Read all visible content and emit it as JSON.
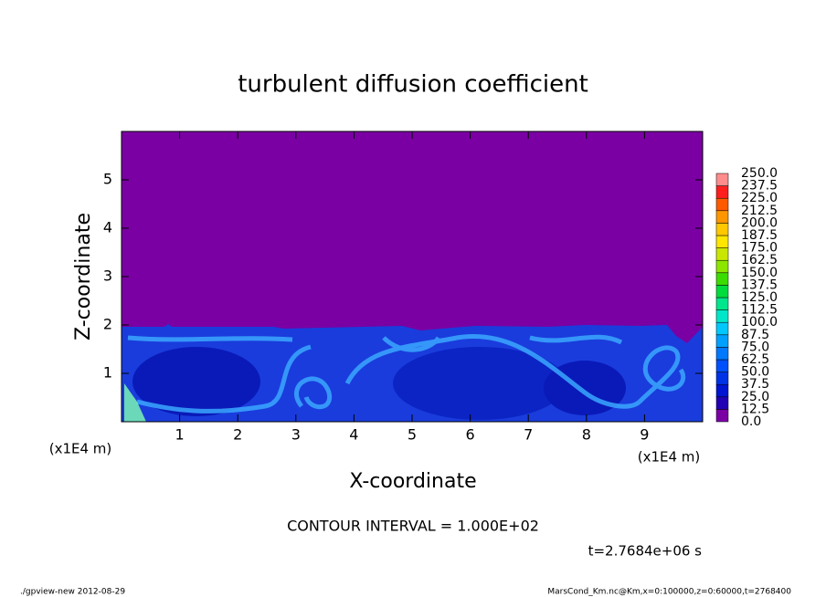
{
  "chart_data": {
    "type": "contour",
    "title": "turbulent diffusion coefficient",
    "xlabel": "X-coordinate",
    "ylabel": "Z-coordinate",
    "xunit": "(x1E4 m)",
    "yunit": "(x1E4 m)",
    "xlim": [
      0,
      10
    ],
    "ylim": [
      0,
      6
    ],
    "xticks": [
      1,
      2,
      3,
      4,
      5,
      6,
      7,
      8,
      9
    ],
    "yticks": [
      1,
      2,
      3,
      4,
      5
    ],
    "levels": [
      {
        "value": 0,
        "label": "0.0"
      },
      {
        "value": 12.5,
        "label": "12.5"
      },
      {
        "value": 25,
        "label": "25.0"
      },
      {
        "value": 37.5,
        "label": "37.5"
      },
      {
        "value": 50,
        "label": "50.0"
      },
      {
        "value": 62.5,
        "label": "62.5"
      },
      {
        "value": 75,
        "label": "75.0"
      },
      {
        "value": 87.5,
        "label": "87.5"
      },
      {
        "value": 100,
        "label": "100.0"
      },
      {
        "value": 112.5,
        "label": "112.5"
      },
      {
        "value": 125,
        "label": "125.0"
      },
      {
        "value": 137.5,
        "label": "137.5"
      },
      {
        "value": 150,
        "label": "150.0"
      },
      {
        "value": 162.5,
        "label": "162.5"
      },
      {
        "value": 175,
        "label": "175.0"
      },
      {
        "value": 187.5,
        "label": "187.5"
      },
      {
        "value": 200,
        "label": "200.0"
      },
      {
        "value": 212.5,
        "label": "212.5"
      },
      {
        "value": 225,
        "label": "225.0"
      },
      {
        "value": 237.5,
        "label": "237.5"
      },
      {
        "value": 250,
        "label": "250.0"
      }
    ],
    "colors": [
      "#7a00a4",
      "#2200b4",
      "#0014d2",
      "#0032e6",
      "#0050ff",
      "#0078ff",
      "#00a0ff",
      "#00c8ff",
      "#00e6c8",
      "#00e68c",
      "#00dc3c",
      "#3cdc00",
      "#8ce600",
      "#c8e600",
      "#ffe600",
      "#ffc800",
      "#ff9600",
      "#ff5a00",
      "#ff1e1e",
      "#ff8c8c"
    ],
    "contour_interval": "CONTOUR INTERVAL = 1.000E+02",
    "time_label": "t=2.7684e+06 s",
    "footer_left": "./gpview-new  2012-08-29",
    "footer_right": "MarsCond_Km.nc@Km,x=0:100000,z=0:60000,t=2768400"
  }
}
